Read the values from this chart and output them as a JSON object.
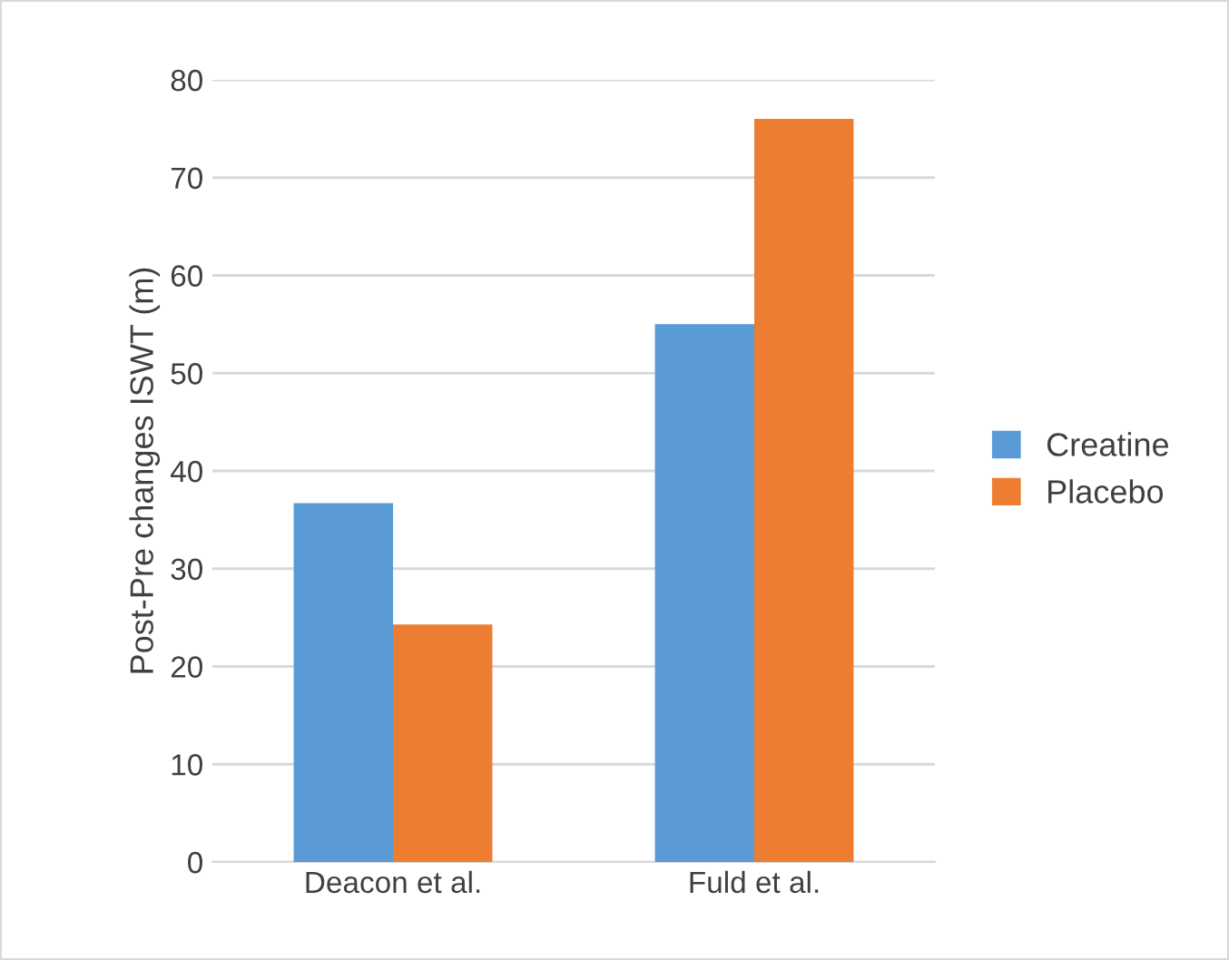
{
  "chart_data": {
    "type": "bar",
    "ylabel": "Post-Pre changes ISWT (m)",
    "categories": [
      "Deacon et al.",
      "Fuld et al."
    ],
    "series": [
      {
        "name": "Creatine",
        "color": "#5b9bd5",
        "values": [
          36.7,
          55
        ]
      },
      {
        "name": "Placebo",
        "color": "#ed7d31",
        "values": [
          24.3,
          76
        ]
      }
    ],
    "ylim": [
      0,
      80
    ],
    "yticks": [
      0,
      10,
      20,
      30,
      40,
      50,
      60,
      70,
      80
    ],
    "grid": "y",
    "legend": "right"
  }
}
